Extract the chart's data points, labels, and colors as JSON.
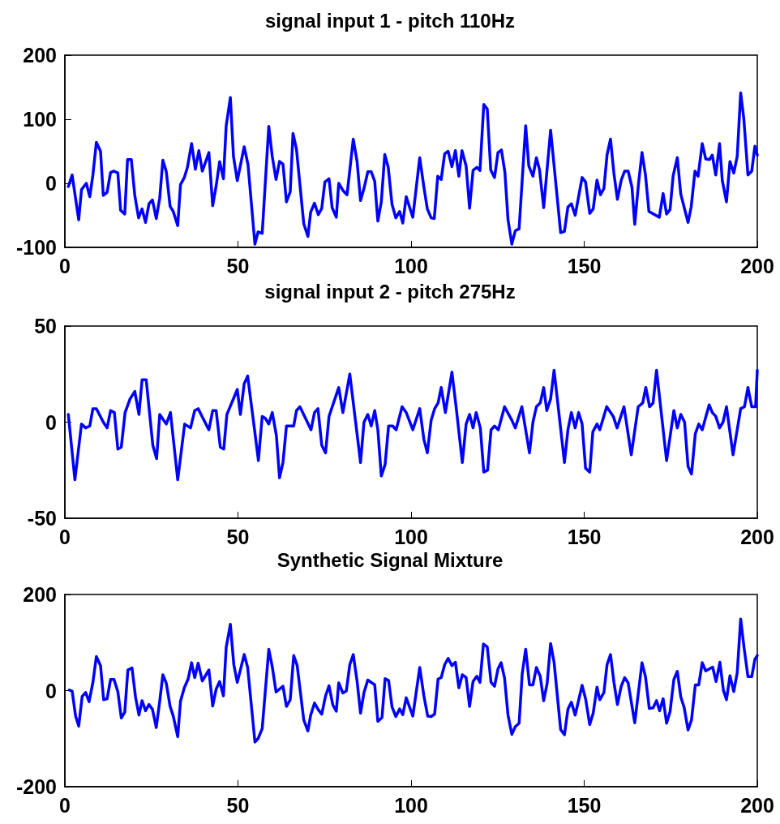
{
  "chart_data": [
    {
      "type": "line",
      "title": "signal input 1 - pitch 110Hz",
      "color": "#0000ff",
      "marker": "none",
      "grid": false,
      "xlim": [
        0,
        200
      ],
      "xticks": [
        0,
        50,
        100,
        150,
        200
      ],
      "ylim": [
        -100,
        200
      ],
      "yticks": [
        -100,
        0,
        100,
        200
      ],
      "x": [
        1,
        2.1,
        4,
        4.8,
        6.2,
        7.2,
        8.1,
        9.1,
        10.3,
        11.1,
        12.2,
        13.2,
        14.2,
        15.3,
        16.1,
        17.3,
        18.1,
        19.2,
        20.2,
        21.3,
        22.3,
        23.3,
        24.3,
        25.3,
        26.4,
        27.4,
        28.3,
        29.3,
        30.4,
        31.3,
        32.6,
        33.4,
        34.5,
        35.4,
        36.6,
        37.7,
        38.7,
        39.7,
        41.6,
        42.7,
        43.7,
        44.7,
        45.8,
        46.6,
        47.8,
        48.7,
        49.8,
        51.8,
        52.9,
        54.9,
        55.8,
        57,
        58.9,
        59.9,
        61,
        62,
        63,
        64,
        65.1,
        65.9,
        66.9,
        69,
        70.2,
        71,
        72.1,
        73.2,
        74.2,
        75.1,
        76.3,
        77.2,
        78.4,
        79.1,
        80.3,
        81.5,
        83.3,
        84.4,
        85.4,
        86.4,
        87.5,
        88.5,
        89.5,
        90.4,
        91.4,
        92.4,
        93.4,
        94.5,
        95.6,
        96.7,
        97.6,
        98.6,
        100.5,
        102.5,
        103.7,
        104.7,
        105.8,
        106.7,
        107.7,
        108.7,
        109.7,
        110.7,
        111.8,
        112.8,
        113.8,
        114.7,
        115.9,
        116.9,
        117.9,
        119,
        119.9,
        121,
        122,
        123,
        124.1,
        125.1,
        126.1,
        127.1,
        128,
        129.1,
        130.1,
        131.2,
        133.1,
        134,
        135.2,
        136.2,
        137.1,
        138.3,
        140.3,
        143.2,
        144.3,
        145.3,
        146.3,
        147.4,
        149.4,
        150.4,
        151.6,
        152.6,
        153.7,
        154.7,
        155.7,
        156.6,
        157.6,
        158.6,
        159.6,
        160.7,
        161.7,
        162.7,
        163.8,
        164.6,
        165.7,
        166.7,
        167.7,
        168.7,
        171.7,
        172.8,
        173.8,
        174.8,
        175.7,
        176.9,
        177.9,
        180,
        180.9,
        182,
        182.9,
        184.1,
        185.1,
        186.2,
        187,
        188,
        189.1,
        189.9,
        191.1,
        192.1,
        193.2,
        194.2,
        195.2,
        196.1,
        197.3,
        198.4,
        199.3,
        200
      ],
      "values": [
        -5,
        13,
        -57,
        -10,
        0,
        -21,
        13,
        64,
        50,
        -19,
        -14,
        17,
        19,
        16,
        -42,
        -48,
        37,
        37,
        -19,
        -54,
        -40,
        -61,
        -32,
        -26,
        -55,
        -23,
        36,
        18,
        -36,
        -44,
        -66,
        -2,
        9,
        25,
        62,
        22,
        51,
        19,
        48,
        -35,
        -4,
        34,
        7,
        90,
        134,
        42,
        4,
        57,
        29,
        -95,
        -76,
        -78,
        89,
        42,
        6,
        34,
        30,
        -29,
        -13,
        78,
        53,
        -63,
        -83,
        -45,
        -31,
        -49,
        -39,
        2,
        7,
        -38,
        -53,
        0,
        -11,
        -18,
        69,
        34,
        -27,
        -8,
        18,
        18,
        3,
        -59,
        -29,
        45,
        25,
        -33,
        -54,
        -44,
        -62,
        -21,
        -53,
        40,
        -6,
        -40,
        -54,
        -55,
        11,
        6,
        46,
        50,
        26,
        51,
        11,
        51,
        27,
        -39,
        20,
        25,
        20,
        123,
        116,
        21,
        9,
        48,
        52,
        17,
        -57,
        -95,
        -74,
        -71,
        90,
        27,
        11,
        40,
        21,
        -38,
        83,
        -77,
        -75,
        -37,
        -32,
        -50,
        9,
        2,
        -47,
        -40,
        5,
        -18,
        -8,
        44,
        69,
        15,
        -25,
        5,
        19,
        19,
        -6,
        -64,
        0,
        48,
        13,
        -44,
        -53,
        -16,
        -48,
        -41,
        12,
        40,
        -17,
        -61,
        -37,
        19,
        11,
        62,
        38,
        37,
        44,
        13,
        62,
        4,
        -29,
        34,
        16,
        42,
        141,
        101,
        13,
        19,
        58,
        44
      ]
    },
    {
      "type": "line",
      "title": "signal input 2 - pitch 275Hz",
      "color": "#0000ff",
      "marker": "none",
      "grid": false,
      "xlim": [
        0,
        200
      ],
      "xticks": [
        0,
        50,
        100,
        150,
        200
      ],
      "ylim": [
        -50,
        50
      ],
      "yticks": [
        -50,
        0,
        50
      ],
      "x": [
        1,
        2.9,
        4.8,
        6,
        7.2,
        8.1,
        9.1,
        11.1,
        12.2,
        13.2,
        14.3,
        15.3,
        16.3,
        17.4,
        18.8,
        20.2,
        21.4,
        22.3,
        23.5,
        25.4,
        26.5,
        27.4,
        29.3,
        30.5,
        32.6,
        34.6,
        36.3,
        37.5,
        38.5,
        41.6,
        42.7,
        43.7,
        44.9,
        45.9,
        46.8,
        49.8,
        50.7,
        51.8,
        52.8,
        55,
        55.9,
        57,
        57.9,
        58.9,
        59.9,
        61.1,
        62,
        63,
        64,
        66.1,
        66.9,
        67.9,
        71.1,
        72.1,
        73.1,
        74.2,
        75.3,
        76.3,
        79.1,
        80.3,
        82.3,
        85.4,
        86.4,
        87.5,
        88.5,
        89.5,
        90.4,
        91.4,
        92.5,
        93.5,
        94.7,
        95.7,
        97.4,
        98.6,
        100.5,
        102.5,
        103.7,
        104.7,
        105.8,
        106.8,
        107.8,
        108.7,
        109.9,
        111.8,
        113,
        114.8,
        115.9,
        116.9,
        117.9,
        118.8,
        120,
        121,
        122.1,
        123.1,
        124.1,
        125.2,
        127,
        129.1,
        130.1,
        132,
        134.2,
        135.2,
        136.2,
        137.3,
        138.3,
        139.2,
        140.3,
        141.3,
        144.3,
        145.3,
        146.3,
        147.4,
        148.4,
        149.4,
        150.4,
        151.6,
        152.5,
        153.7,
        154.5,
        156.5,
        158.4,
        159.5,
        161.5,
        163.6,
        165.6,
        166.9,
        167.8,
        168.9,
        169.9,
        170.9,
        173.8,
        175.9,
        176.9,
        177.9,
        179,
        180,
        181,
        182.1,
        183.1,
        184.1,
        186.1,
        187,
        188,
        189.1,
        190.1,
        191.1,
        193,
        195.2,
        196.3,
        197.3,
        198.4,
        199.5,
        200
      ],
      "values": [
        4,
        -30,
        -1,
        -3,
        -2,
        7,
        7,
        0,
        -3,
        6,
        5,
        -14,
        -13,
        5,
        12,
        16,
        4,
        22,
        22,
        -12,
        -19,
        4,
        -1,
        5,
        -30,
        -1,
        -3,
        6,
        7,
        -4,
        6,
        6,
        -13,
        -14,
        4,
        17,
        4,
        20,
        24,
        -7,
        -20,
        3,
        2,
        -1,
        5,
        -7,
        -29,
        -21,
        -2,
        -2,
        6,
        8,
        -4,
        5,
        7,
        -12,
        -16,
        3,
        18,
        5,
        25,
        -21,
        0,
        4,
        -2,
        6,
        -4,
        -28,
        -22,
        -2,
        -2,
        -4,
        8,
        5,
        -4,
        7,
        -9,
        -16,
        1,
        7,
        10,
        18,
        5,
        26,
        8,
        -21,
        -1,
        4,
        -3,
        5,
        -3,
        -26,
        -25,
        -4,
        -2,
        -4,
        8,
        1,
        -3,
        8,
        -16,
        0,
        8,
        10,
        18,
        6,
        12,
        27,
        -21,
        -4,
        5,
        -3,
        5,
        -1,
        -24,
        -26,
        -5,
        -1,
        -4,
        8,
        3,
        -3,
        8,
        -17,
        8,
        10,
        18,
        8,
        10,
        27,
        -20,
        6,
        -3,
        4,
        0,
        -23,
        -27,
        -6,
        -1,
        -4,
        9,
        5,
        3,
        -3,
        0,
        8,
        -17,
        7,
        8,
        18,
        8,
        8,
        27
      ]
    },
    {
      "type": "line",
      "title": "Synthetic Signal Mixture",
      "color": "#0000ff",
      "marker": "none",
      "grid": false,
      "xlim": [
        0,
        200
      ],
      "xticks": [
        0,
        50,
        100,
        150,
        200
      ],
      "ylim": [
        -200,
        200
      ],
      "yticks": [
        -200,
        0,
        200
      ],
      "x": [
        1.3,
        2.1,
        3.1,
        4,
        5,
        6,
        7,
        8.1,
        9.1,
        10.3,
        11.2,
        12.2,
        13.2,
        14.2,
        15.3,
        16.3,
        17.3,
        18.2,
        19.4,
        20.4,
        21.4,
        22.3,
        23.3,
        24.3,
        25.3,
        26.4,
        27.4,
        28.3,
        29.3,
        30.4,
        31.3,
        32.6,
        33.4,
        34.5,
        35.6,
        36.6,
        37.5,
        38.5,
        39.7,
        41.6,
        42.7,
        43.7,
        44.7,
        45.8,
        46.6,
        47.8,
        48.8,
        49.8,
        51.8,
        52.8,
        54.9,
        55.8,
        57,
        58.9,
        59.9,
        61,
        63,
        64,
        65.1,
        66.1,
        67.1,
        69,
        70.2,
        71,
        72.1,
        73.2,
        74.2,
        75.3,
        76.3,
        77.4,
        78.4,
        79.1,
        80.3,
        81.3,
        82.3,
        83.3,
        84.4,
        85.4,
        86.4,
        87.5,
        89.5,
        90.4,
        91.6,
        92.5,
        93.5,
        94.5,
        95.6,
        96.7,
        97.6,
        98.6,
        100.5,
        102.5,
        103.7,
        104.8,
        105.8,
        106.8,
        107.8,
        108.7,
        109.7,
        110.7,
        111.8,
        112.8,
        113.8,
        114.8,
        115.9,
        116.9,
        117.9,
        119,
        119.9,
        120.9,
        122,
        123.1,
        124.1,
        125.1,
        126,
        127,
        128,
        129.1,
        130.1,
        131.2,
        132.1,
        133.1,
        134.2,
        135.2,
        136.2,
        137.3,
        138.3,
        139.3,
        140.3,
        141.3,
        143.2,
        144.3,
        145.3,
        146.3,
        147.4,
        149.4,
        150.4,
        151.6,
        152.6,
        153.7,
        154.5,
        155.7,
        156.6,
        157.6,
        158.6,
        159.6,
        160.7,
        161.7,
        162.7,
        164.6,
        166.7,
        167.7,
        168.8,
        169.9,
        170.9,
        171.8,
        172.8,
        173.8,
        174.8,
        175.9,
        176.9,
        177.9,
        178.9,
        180,
        181,
        182.1,
        183.1,
        184.1,
        185.1,
        187.1,
        188.1,
        189.2,
        190.2,
        191.1,
        192.1,
        193.2,
        194.2,
        195.2,
        196.2,
        197.3,
        198.4,
        199.3,
        200
      ],
      "values": [
        1,
        -1,
        -53,
        -74,
        -12,
        -4,
        -23,
        17,
        71,
        52,
        -19,
        -17,
        23,
        23,
        -2,
        -57,
        -45,
        43,
        47,
        -13,
        -51,
        -21,
        -42,
        -29,
        -39,
        -77,
        -22,
        33,
        15,
        -33,
        -53,
        -96,
        -22,
        6,
        24,
        58,
        27,
        57,
        20,
        43,
        -32,
        3,
        19,
        -11,
        90,
        138,
        54,
        17,
        75,
        48,
        -107,
        -100,
        -79,
        86,
        50,
        -3,
        9,
        -33,
        -19,
        73,
        52,
        -61,
        -84,
        -51,
        -26,
        -40,
        -49,
        -11,
        10,
        -30,
        -43,
        16,
        -5,
        -1,
        54,
        75,
        20,
        -47,
        -4,
        22,
        12,
        -64,
        -56,
        25,
        21,
        -34,
        -54,
        -38,
        -50,
        -15,
        -53,
        48,
        -11,
        -53,
        -54,
        -49,
        24,
        27,
        54,
        67,
        52,
        59,
        6,
        33,
        27,
        -33,
        19,
        30,
        17,
        97,
        91,
        17,
        9,
        45,
        58,
        26,
        -51,
        -91,
        -75,
        -68,
        35,
        86,
        12,
        12,
        48,
        30,
        -21,
        15,
        98,
        59,
        -81,
        -92,
        -39,
        -24,
        -51,
        11,
        -17,
        -71,
        -47,
        7,
        -19,
        -4,
        54,
        75,
        17,
        -29,
        9,
        27,
        16,
        -67,
        58,
        29,
        -37,
        -36,
        -21,
        -42,
        -17,
        -68,
        -44,
        23,
        40,
        -13,
        -36,
        -82,
        -61,
        12,
        12,
        58,
        41,
        49,
        19,
        59,
        1,
        -19,
        31,
        -2,
        37,
        149,
        88,
        29,
        29,
        65,
        73
      ]
    }
  ]
}
